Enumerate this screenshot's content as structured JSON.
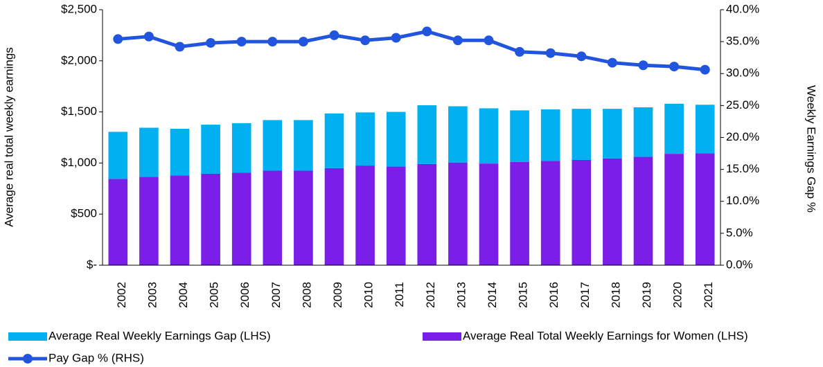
{
  "chart_data": {
    "type": "bar_line",
    "y_label": "Average real total weekly earnings",
    "y2_label": "Weekly Earnings Gap %",
    "categories": [
      "2002",
      "2003",
      "2004",
      "2005",
      "2006",
      "2007",
      "2008",
      "2009",
      "2010",
      "2011",
      "2012",
      "2013",
      "2014",
      "2015",
      "2016",
      "2017",
      "2018",
      "2019",
      "2020",
      "2021"
    ],
    "series": [
      {
        "name": "Average Real Weekly Earnings Gap (LHS)",
        "color": "#00b0f0",
        "type": "bar",
        "stacked": true,
        "values": [
          460,
          480,
          457,
          480,
          485,
          495,
          495,
          535,
          520,
          535,
          575,
          550,
          540,
          505,
          505,
          500,
          485,
          485,
          490,
          475
        ]
      },
      {
        "name": "Average Real Total Weekly Earnings for Women (LHS)",
        "color": "#7b1fe8",
        "type": "bar",
        "stacked": true,
        "values": [
          845,
          865,
          878,
          895,
          905,
          925,
          925,
          950,
          975,
          965,
          990,
          1005,
          995,
          1010,
          1020,
          1030,
          1045,
          1060,
          1090,
          1095
        ]
      },
      {
        "name": "Pay Gap % (RHS)",
        "color": "#2255dd",
        "type": "line",
        "axis": "y2",
        "values": [
          35.4,
          35.8,
          34.2,
          34.8,
          35.0,
          35.0,
          35.0,
          36.0,
          35.2,
          35.6,
          36.6,
          35.2,
          35.2,
          33.4,
          33.2,
          32.7,
          31.7,
          31.3,
          31.1,
          30.6
        ]
      }
    ],
    "ylim": [
      0,
      2500
    ],
    "yticks": [
      {
        "value": 0,
        "label": "$-"
      },
      {
        "value": 500,
        "label": "$500"
      },
      {
        "value": 1000,
        "label": "$1,000"
      },
      {
        "value": 1500,
        "label": "$1,500"
      },
      {
        "value": 2000,
        "label": "$2,000"
      },
      {
        "value": 2500,
        "label": "$2,500"
      }
    ],
    "y2lim": [
      0,
      40
    ],
    "y2ticks": [
      {
        "value": 0,
        "label": "0.0%"
      },
      {
        "value": 5,
        "label": "5.0%"
      },
      {
        "value": 10,
        "label": "10.0%"
      },
      {
        "value": 15,
        "label": "15.0%"
      },
      {
        "value": 20,
        "label": "20.0%"
      },
      {
        "value": 25,
        "label": "25.0%"
      },
      {
        "value": 30,
        "label": "30.0%"
      },
      {
        "value": 35,
        "label": "35.0%"
      },
      {
        "value": 40,
        "label": "40.0%"
      }
    ],
    "grid": false
  }
}
